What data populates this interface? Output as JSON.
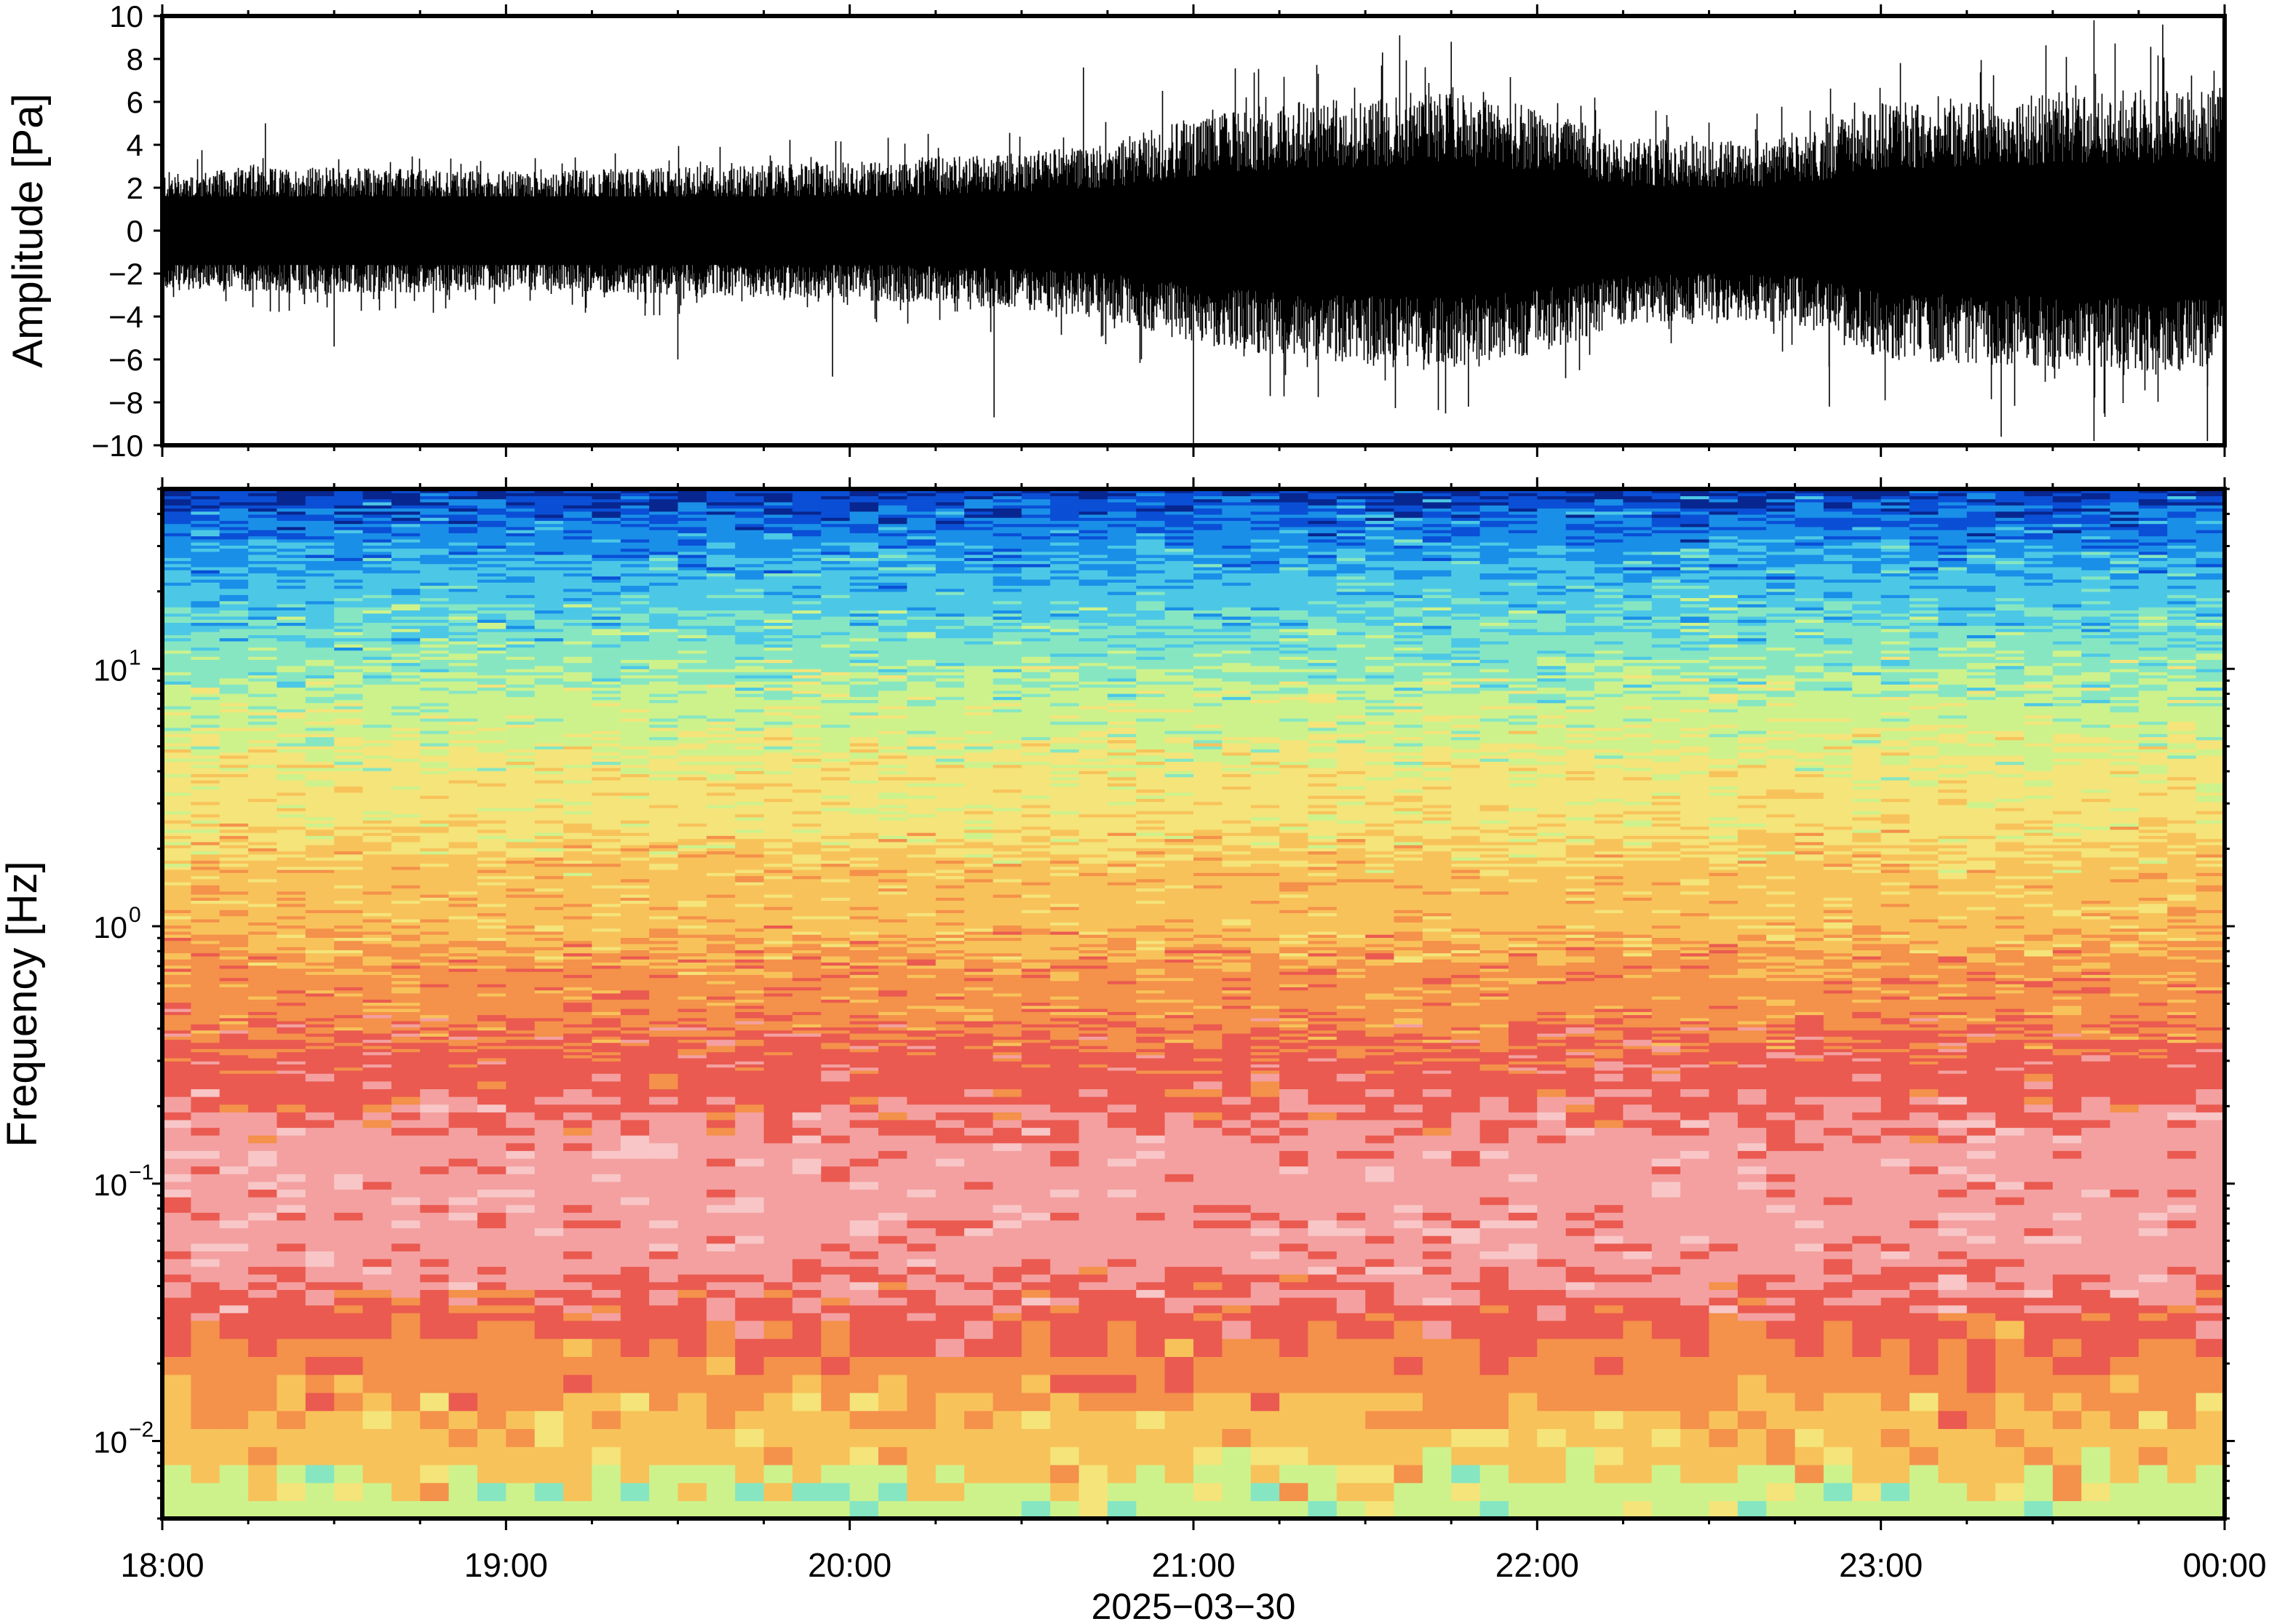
{
  "chart_data": [
    {
      "type": "line",
      "panel": "waveform",
      "ylabel": "Amplitude [Pa]",
      "ylim": [
        -10,
        10
      ],
      "yticks": [
        -10,
        -8,
        -6,
        -4,
        -2,
        0,
        2,
        4,
        6,
        8,
        10
      ],
      "ytick_labels": [
        "−10",
        "−8",
        "−6",
        "−4",
        "−2",
        "0",
        "2",
        "4",
        "6",
        "8",
        "10"
      ],
      "x_range_hours": [
        18,
        24
      ],
      "envelope_hours": [
        18.0,
        18.5,
        19.0,
        19.5,
        20.0,
        20.5,
        20.75,
        21.0,
        21.25,
        21.5,
        21.75,
        22.0,
        22.25,
        22.5,
        22.75,
        23.0,
        23.5,
        24.0
      ],
      "envelope_abs_pa": [
        2.4,
        2.6,
        2.4,
        2.6,
        2.8,
        3.2,
        3.6,
        4.6,
        5.2,
        5.4,
        5.6,
        5.0,
        3.8,
        3.6,
        3.8,
        5.2,
        5.6,
        5.8
      ],
      "peaks": [
        {
          "x_hour": 18.3,
          "value": 5.0
        },
        {
          "x_hour": 18.5,
          "value": -5.4
        },
        {
          "x_hour": 19.5,
          "value": -6.0
        },
        {
          "x_hour": 19.95,
          "value": -6.8
        },
        {
          "x_hour": 20.42,
          "value": -8.7
        },
        {
          "x_hour": 20.68,
          "value": 7.6
        },
        {
          "x_hour": 21.0,
          "value": -10.0
        },
        {
          "x_hour": 21.55,
          "value": 8.3
        },
        {
          "x_hour": 21.6,
          "value": 9.1
        },
        {
          "x_hour": 21.75,
          "value": 8.8
        },
        {
          "x_hour": 21.8,
          "value": -8.2
        },
        {
          "x_hour": 22.85,
          "value": -8.2
        },
        {
          "x_hour": 23.35,
          "value": -9.6
        },
        {
          "x_hour": 23.62,
          "value": 9.8
        },
        {
          "x_hour": 23.62,
          "value": -9.8
        },
        {
          "x_hour": 23.82,
          "value": 9.6
        },
        {
          "x_hour": 23.95,
          "value": -9.8
        }
      ]
    },
    {
      "type": "heatmap",
      "panel": "spectrogram",
      "ylabel": "Frequency [Hz]",
      "yscale": "log",
      "ylim": [
        0.005,
        50
      ],
      "yticks": [
        0.01,
        0.1,
        1,
        10
      ],
      "ytick_labels": [
        {
          "base": "10",
          "exp": "−2"
        },
        {
          "base": "10",
          "exp": "−1"
        },
        {
          "base": "10",
          "exp": "0"
        },
        {
          "base": "10",
          "exp": "1"
        }
      ],
      "colormap": [
        "#08268f",
        "#0a4fd6",
        "#1a8fe8",
        "#4cc8e6",
        "#86e6c2",
        "#cdf28c",
        "#f4e47a",
        "#f8c25a",
        "#f4914a",
        "#ea5a50",
        "#f4a0a0",
        "#f8c6c6"
      ],
      "color_by_log_frequency": [
        {
          "log_f": -2.3,
          "color": "#cdf28c"
        },
        {
          "log_f": -2.05,
          "color": "#f8c25a"
        },
        {
          "log_f": -1.75,
          "color": "#f4914a"
        },
        {
          "log_f": -1.55,
          "color": "#ea5a50"
        },
        {
          "log_f": -1.3,
          "color": "#f4a0a0"
        },
        {
          "log_f": -0.95,
          "color": "#f4a0a0"
        },
        {
          "log_f": -0.55,
          "color": "#ea5a50"
        },
        {
          "log_f": -0.3,
          "color": "#f4914a"
        },
        {
          "log_f": 0.1,
          "color": "#f8c25a"
        },
        {
          "log_f": 0.5,
          "color": "#f4e47a"
        },
        {
          "log_f": 0.85,
          "color": "#cdf28c"
        },
        {
          "log_f": 1.05,
          "color": "#86e6c2"
        },
        {
          "log_f": 1.3,
          "color": "#4cc8e6"
        },
        {
          "log_f": 1.5,
          "color": "#1a8fe8"
        },
        {
          "log_f": 1.65,
          "color": "#0a4fd6"
        },
        {
          "log_f": 1.7,
          "color": "#08268f"
        }
      ]
    }
  ],
  "xaxis": {
    "ticks_hours": [
      18,
      19,
      20,
      21,
      22,
      23,
      24
    ],
    "tick_labels": [
      "18:00",
      "19:00",
      "20:00",
      "21:00",
      "22:00",
      "23:00",
      "00:00"
    ],
    "xlabel": "2025−03−30"
  }
}
